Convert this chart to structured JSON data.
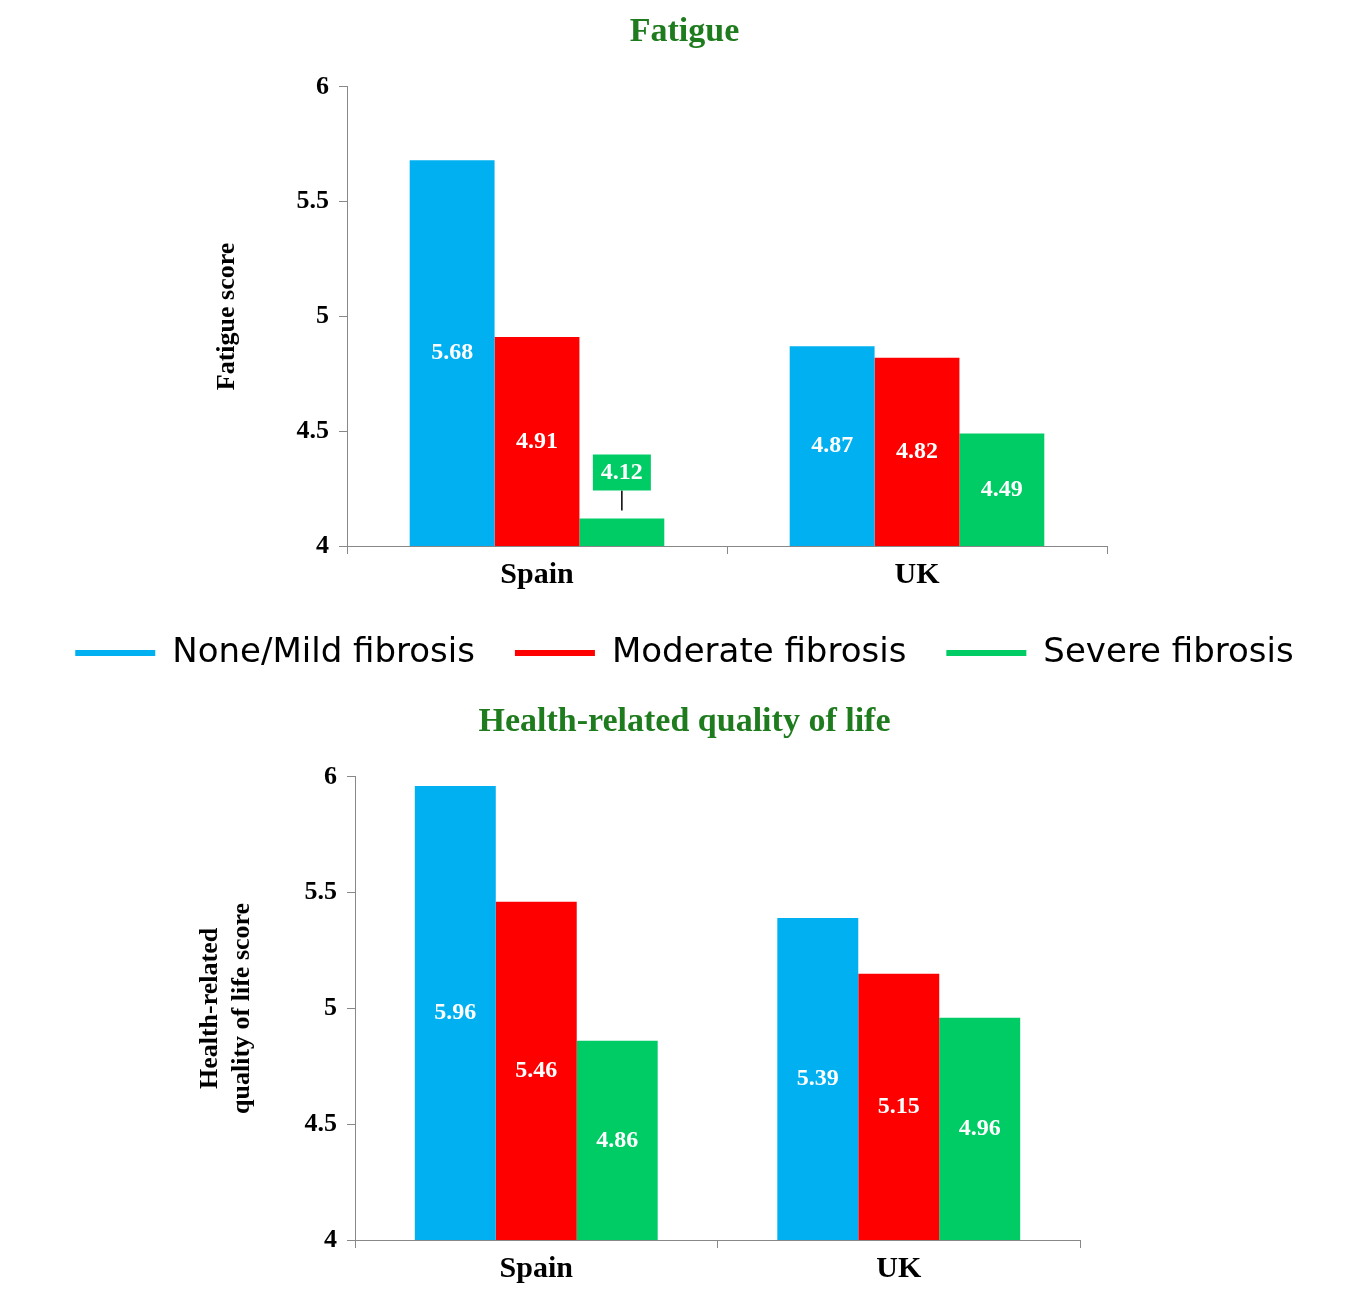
{
  "chart_data": [
    {
      "type": "bar",
      "title": "Fatigue",
      "ylabel": "Fatigue score",
      "categories": [
        "Spain",
        "UK"
      ],
      "series": [
        {
          "name": "None/Mild fibrosis",
          "color": "#00b0f0",
          "values": [
            5.68,
            4.87
          ]
        },
        {
          "name": "Moderate fibrosis",
          "color": "#ff0000",
          "values": [
            4.91,
            4.82
          ]
        },
        {
          "name": "Severe fibrosis",
          "color": "#00cc66",
          "values": [
            4.12,
            4.49
          ]
        }
      ],
      "ylim": [
        4,
        6
      ],
      "yticks": [
        4,
        4.5,
        5,
        5.5,
        6
      ],
      "data_labels": true,
      "legend": "bottom",
      "grid": false
    },
    {
      "type": "bar",
      "title": "Health-related quality of life",
      "ylabel": "Health-related\nquality of life score",
      "categories": [
        "Spain",
        "UK"
      ],
      "series": [
        {
          "color": "#00b0f0",
          "values": [
            5.96,
            5.39
          ]
        },
        {
          "color": "#ff0000",
          "values": [
            5.46,
            5.15
          ]
        },
        {
          "color": "#00cc66",
          "values": [
            4.86,
            4.96
          ]
        }
      ],
      "ylim": [
        4,
        6
      ],
      "yticks": [
        4,
        4.5,
        5,
        5.5,
        6
      ],
      "data_labels": true,
      "grid": false
    }
  ]
}
